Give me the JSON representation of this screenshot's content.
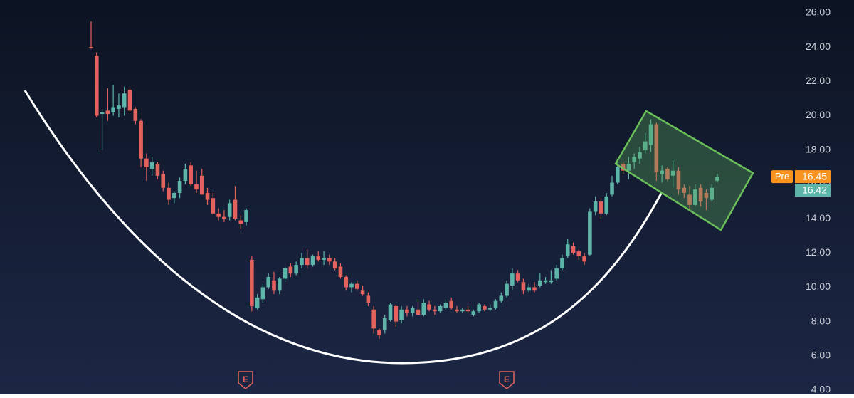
{
  "chart_data": {
    "type": "candlestick",
    "ylim": [
      4,
      26
    ],
    "yticks": [
      {
        "value": 4,
        "label": "4.00"
      },
      {
        "value": 6,
        "label": "6.00"
      },
      {
        "value": 8,
        "label": "8.00"
      },
      {
        "value": 10,
        "label": "10.00"
      },
      {
        "value": 12,
        "label": "12.00"
      },
      {
        "value": 14,
        "label": "14.00"
      },
      {
        "value": 16,
        "label": "16.00"
      },
      {
        "value": 18,
        "label": "18.00"
      },
      {
        "value": 20,
        "label": "20.00"
      },
      {
        "value": 22,
        "label": "22.00"
      },
      {
        "value": 24,
        "label": "24.00"
      },
      {
        "value": 26,
        "label": "26.00"
      }
    ],
    "grid": false,
    "up_color": "#5db4a8",
    "down_color": "#e4625d",
    "open": [
      24.0,
      23.5,
      20.1,
      20.3,
      20.2,
      20.4,
      20.5,
      21.5,
      20.4,
      19.7,
      17.5,
      16.9,
      17.2,
      16.6,
      15.8,
      15.2,
      15.5,
      16.2,
      17.1,
      16.0,
      16.5,
      15.5,
      15.2,
      14.3,
      14.1,
      14.1,
      15.1,
      13.9,
      13.8,
      11.6,
      8.8,
      9.3,
      10.0,
      10.4,
      9.8,
      10.5,
      11.2,
      10.8,
      11.3,
      11.7,
      11.3,
      11.8,
      11.6,
      11.7,
      11.5,
      11.2,
      10.6,
      10.0,
      10.2,
      9.8,
      9.5,
      8.7,
      7.5,
      7.5,
      8.1,
      8.9,
      8.1,
      8.7,
      8.5,
      8.7,
      8.4,
      9.0,
      8.7,
      8.6,
      8.8,
      9.2,
      8.7,
      8.6,
      8.7,
      8.4,
      8.6,
      8.9,
      8.7,
      8.8,
      9.2,
      9.5,
      10.1,
      10.8,
      10.3,
      9.8,
      10.0,
      10.1,
      10.3,
      10.3,
      10.5,
      11.1,
      11.8,
      12.4,
      12.1,
      11.8,
      11.9,
      14.4,
      15.0,
      14.3,
      15.4,
      16.1,
      17.2,
      16.8,
      17.3,
      17.5,
      18.0,
      18.3,
      19.5,
      16.6,
      16.9,
      16.5,
      16.8,
      15.8,
      15.4,
      14.8,
      15.8,
      15.5,
      15.1,
      16.2
    ],
    "high": [
      25.5,
      23.7,
      20.4,
      21.6,
      21.8,
      21.3,
      21.7,
      21.6,
      20.5,
      19.8,
      17.8,
      17.6,
      17.3,
      16.8,
      16.1,
      15.6,
      16.4,
      17.2,
      17.3,
      16.8,
      16.9,
      15.8,
      15.5,
      14.6,
      14.5,
      15.1,
      15.9,
      14.2,
      14.6,
      11.8,
      9.6,
      10.2,
      10.8,
      10.9,
      10.6,
      11.2,
      11.4,
      11.5,
      12.0,
      12.2,
      11.9,
      12.1,
      12.1,
      11.9,
      11.7,
      11.4,
      10.7,
      10.3,
      10.4,
      10.1,
      9.7,
      8.9,
      7.6,
      8.4,
      9.1,
      9.0,
      8.9,
      8.9,
      8.9,
      9.3,
      9.3,
      9.2,
      8.9,
      9.0,
      9.3,
      9.4,
      8.9,
      8.8,
      8.9,
      8.7,
      9.1,
      9.0,
      9.0,
      9.3,
      9.7,
      10.4,
      11.1,
      11.0,
      10.5,
      10.2,
      10.3,
      10.8,
      10.6,
      11.0,
      11.3,
      11.9,
      12.8,
      12.6,
      12.2,
      12.0,
      14.6,
      15.3,
      15.2,
      15.5,
      16.5,
      17.3,
      17.3,
      17.6,
      17.8,
      18.2,
      19.0,
      19.8,
      19.6,
      17.1,
      17.0,
      17.4,
      17.0,
      16.0,
      15.9,
      16.0,
      16.0,
      15.7,
      16.0,
      16.6
    ],
    "low": [
      23.9,
      19.9,
      18.0,
      19.7,
      20.0,
      19.9,
      20.0,
      20.2,
      19.5,
      17.0,
      16.2,
      16.5,
      16.3,
      15.6,
      14.8,
      14.9,
      15.2,
      16.0,
      15.9,
      15.5,
      15.4,
      14.8,
      14.2,
      13.9,
      13.8,
      13.9,
      13.9,
      13.4,
      13.6,
      8.6,
      8.7,
      9.1,
      9.9,
      9.6,
      9.6,
      10.3,
      10.6,
      10.7,
      11.1,
      11.1,
      11.2,
      11.5,
      11.3,
      11.3,
      11.0,
      10.5,
      9.8,
      9.7,
      9.8,
      9.5,
      8.9,
      7.3,
      7.0,
      7.3,
      8.0,
      7.7,
      7.9,
      8.3,
      8.3,
      8.4,
      8.3,
      8.6,
      8.4,
      8.5,
      8.7,
      8.7,
      8.5,
      8.5,
      8.5,
      8.3,
      8.5,
      8.6,
      8.6,
      8.7,
      9.1,
      9.4,
      9.8,
      10.3,
      9.6,
      9.7,
      9.7,
      10.0,
      10.2,
      10.2,
      10.4,
      11.0,
      11.7,
      11.9,
      11.6,
      11.3,
      11.8,
      14.2,
      14.0,
      14.2,
      15.3,
      16.0,
      16.6,
      16.3,
      16.9,
      17.2,
      17.8,
      17.9,
      16.2,
      16.1,
      16.2,
      15.8,
      15.4,
      15.2,
      14.5,
      14.7,
      14.7,
      14.5,
      15.0,
      16.1
    ],
    "close": [
      23.95,
      20.0,
      20.2,
      20.1,
      20.5,
      20.6,
      21.3,
      20.3,
      19.7,
      17.5,
      17.0,
      17.3,
      16.5,
      15.8,
      15.1,
      15.5,
      16.2,
      16.9,
      16.0,
      15.7,
      15.4,
      15.1,
      14.3,
      14.1,
      14.0,
      14.9,
      14.0,
      13.7,
      14.5,
      8.9,
      9.4,
      10.0,
      10.6,
      9.8,
      10.5,
      11.1,
      10.8,
      11.3,
      11.7,
      11.3,
      11.8,
      11.6,
      11.7,
      11.5,
      11.1,
      10.6,
      10.0,
      10.2,
      9.9,
      9.6,
      9.1,
      7.6,
      7.2,
      8.2,
      9.0,
      8.0,
      8.7,
      8.5,
      8.8,
      8.4,
      9.1,
      8.7,
      8.6,
      8.9,
      9.1,
      8.8,
      8.6,
      8.7,
      8.6,
      8.6,
      9.0,
      8.7,
      8.8,
      9.2,
      9.5,
      10.2,
      10.8,
      10.4,
      9.8,
      10.0,
      9.8,
      10.4,
      10.4,
      10.4,
      11.1,
      11.7,
      12.5,
      12.0,
      11.8,
      11.5,
      14.4,
      15.0,
      14.3,
      15.3,
      16.1,
      17.0,
      16.8,
      17.2,
      17.6,
      17.9,
      18.5,
      19.5,
      16.7,
      16.8,
      16.3,
      16.8,
      15.7,
      15.5,
      14.8,
      15.7,
      15.0,
      15.2,
      15.8,
      16.45
    ],
    "pre_label": "Pre",
    "pre_price": 16.45,
    "last_price": 16.42,
    "earnings_markers": [
      "E",
      "E"
    ]
  }
}
